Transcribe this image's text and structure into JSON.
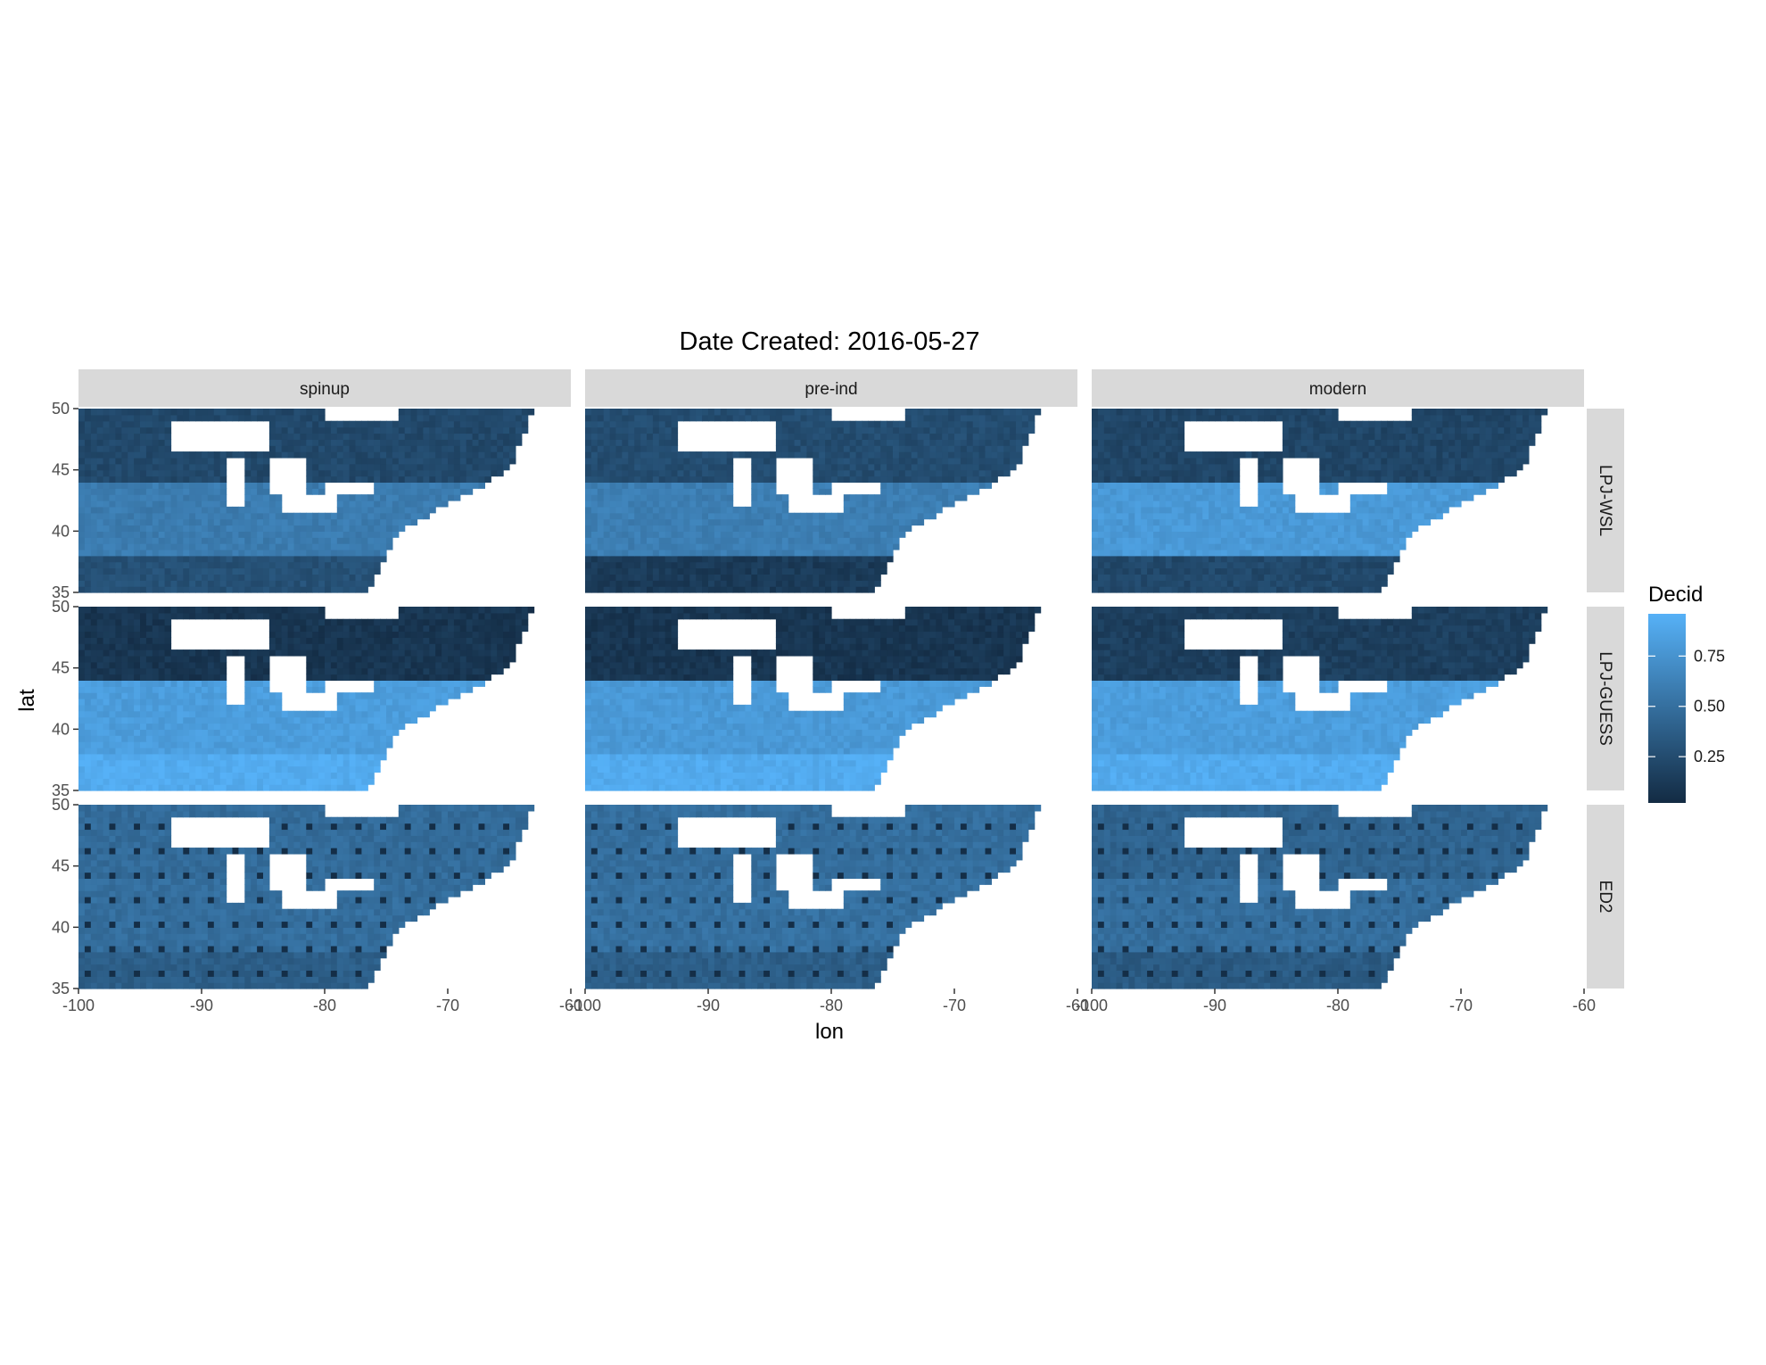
{
  "chart_data": {
    "type": "heatmap",
    "title": "Date Created: 2016-05-27",
    "xlabel": "lon",
    "ylabel": "lat",
    "xlim": [
      -100,
      -60
    ],
    "ylim": [
      35,
      50
    ],
    "x_ticks": [
      -100,
      -90,
      -80,
      -70,
      -60
    ],
    "y_ticks": [
      35,
      40,
      45,
      50
    ],
    "columns": [
      "spinup",
      "pre-ind",
      "modern"
    ],
    "rows": [
      "LPJ-WSL",
      "LPJ-GUESS",
      "ED2"
    ],
    "legend": {
      "title": "Decid",
      "position": "right",
      "ticks": [
        0.25,
        0.5,
        0.75
      ],
      "range": [
        0.02,
        0.96
      ],
      "low_color": "#132B43",
      "high_color": "#56B1F7"
    },
    "grid": false,
    "panels": [
      {
        "row": "LPJ-WSL",
        "column": "spinup",
        "south_value": 0.28,
        "central_value": 0.6,
        "north_value": 0.22
      },
      {
        "row": "LPJ-WSL",
        "column": "pre-ind",
        "south_value": 0.12,
        "central_value": 0.62,
        "north_value": 0.25
      },
      {
        "row": "LPJ-WSL",
        "column": "modern",
        "south_value": 0.22,
        "central_value": 0.82,
        "north_value": 0.2
      },
      {
        "row": "LPJ-GUESS",
        "column": "spinup",
        "south_value": 0.96,
        "central_value": 0.85,
        "north_value": 0.08
      },
      {
        "row": "LPJ-GUESS",
        "column": "pre-ind",
        "south_value": 0.95,
        "central_value": 0.82,
        "north_value": 0.08
      },
      {
        "row": "LPJ-GUESS",
        "column": "modern",
        "south_value": 0.95,
        "central_value": 0.85,
        "north_value": 0.15
      },
      {
        "row": "ED2",
        "column": "spinup",
        "south_value": 0.38,
        "central_value": 0.5,
        "north_value": 0.48
      },
      {
        "row": "ED2",
        "column": "pre-ind",
        "south_value": 0.38,
        "central_value": 0.52,
        "north_value": 0.5
      },
      {
        "row": "ED2",
        "column": "modern",
        "south_value": 0.35,
        "central_value": 0.5,
        "north_value": 0.42
      }
    ]
  }
}
